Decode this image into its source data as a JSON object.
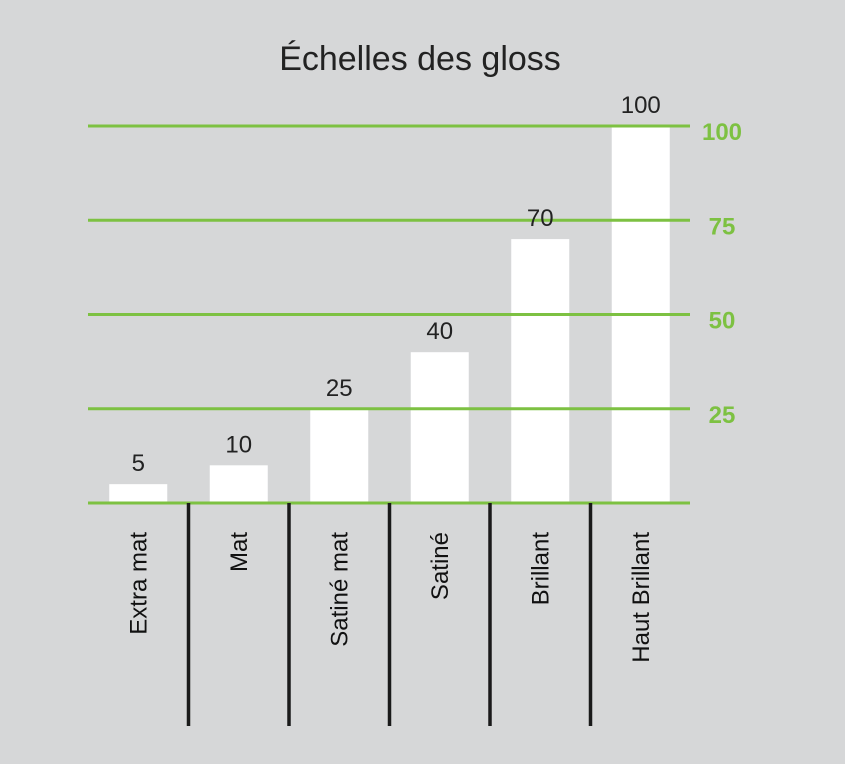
{
  "chart_data": {
    "type": "bar",
    "title": "Échelles des gloss",
    "categories": [
      "Extra mat",
      "Mat",
      "Satiné mat",
      "Satiné",
      "Brillant",
      "Haut Brillant"
    ],
    "values": [
      5,
      10,
      25,
      40,
      70,
      100
    ],
    "value_labels": [
      "5",
      "10",
      "25",
      "40",
      "70",
      "100"
    ],
    "y_ticks": [
      "25",
      "50",
      "75",
      "100"
    ],
    "ylim": [
      0,
      100
    ],
    "grid": true,
    "xlabel": "",
    "ylabel": "",
    "colors": {
      "background": "#d6d7d8",
      "bar": "#ffffff",
      "grid": "#7dc142",
      "tick_text": "#7dc142",
      "separator": "#1a1a1a"
    }
  }
}
